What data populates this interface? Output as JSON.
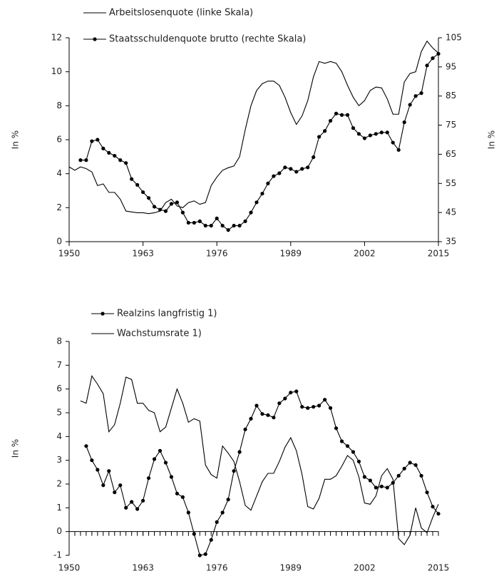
{
  "chart_data": [
    {
      "type": "line",
      "x": [
        1950,
        1951,
        1952,
        1953,
        1954,
        1955,
        1956,
        1957,
        1958,
        1959,
        1960,
        1961,
        1962,
        1963,
        1964,
        1965,
        1966,
        1967,
        1968,
        1969,
        1970,
        1971,
        1972,
        1973,
        1974,
        1975,
        1976,
        1977,
        1978,
        1979,
        1980,
        1981,
        1982,
        1983,
        1984,
        1985,
        1986,
        1987,
        1988,
        1989,
        1990,
        1991,
        1992,
        1993,
        1994,
        1995,
        1996,
        1997,
        1998,
        1999,
        2000,
        2001,
        2002,
        2003,
        2004,
        2005,
        2006,
        2007,
        2008,
        2009,
        2010,
        2011,
        2012,
        2013,
        2014,
        2015
      ],
      "xlim": [
        1950,
        2015
      ],
      "xticks": [
        1950,
        1963,
        1976,
        1989,
        2002,
        2015
      ],
      "ylim": [
        0,
        12
      ],
      "yticks": [
        0,
        2,
        4,
        6,
        8,
        10,
        12
      ],
      "y2lim": [
        35,
        105
      ],
      "y2ticks": [
        35,
        45,
        55,
        65,
        75,
        85,
        95,
        105
      ],
      "ylabel": "In %",
      "y2label": "In %",
      "legend": "upper left",
      "x_minor_ticks": false,
      "series": [
        {
          "name": "Arbeitslosenquote (linke Skala)",
          "color": "#000000",
          "marker": false,
          "values": [
            4.4,
            4.2,
            4.4,
            4.3,
            4.1,
            3.3,
            3.4,
            2.9,
            2.9,
            2.5,
            1.8,
            1.75,
            1.7,
            1.7,
            1.65,
            1.7,
            1.8,
            2.3,
            2.5,
            2.1,
            2.0,
            2.3,
            2.4,
            2.2,
            2.3,
            3.3,
            3.8,
            4.2,
            4.35,
            4.45,
            5.0,
            6.6,
            8.0,
            8.9,
            9.3,
            9.45,
            9.45,
            9.2,
            8.5,
            7.6,
            6.9,
            7.4,
            8.3,
            9.7,
            10.6,
            10.5,
            10.6,
            10.5,
            10.0,
            9.2,
            8.5,
            8.0,
            8.3,
            8.9,
            9.1,
            9.05,
            8.4,
            7.5,
            7.5,
            9.4,
            9.9,
            10.0,
            11.2,
            11.8,
            11.4,
            11.1
          ]
        },
        {
          "name": "Staatsschuldenquote brutto (rechte Skala)",
          "color": "#000000",
          "marker": true,
          "axis": "y2",
          "values": [
            null,
            null,
            63,
            63,
            69.5,
            70,
            67,
            65.5,
            64.5,
            63,
            62,
            56.5,
            54.5,
            52,
            50,
            47,
            46,
            45.5,
            48,
            48.5,
            45,
            41.5,
            41.5,
            42,
            40.5,
            40.5,
            43,
            40.5,
            39,
            40.5,
            40.5,
            42,
            45,
            48.5,
            51.5,
            55,
            57.5,
            58.5,
            60.5,
            60,
            59,
            60,
            60.5,
            64,
            71,
            73,
            76.5,
            79,
            78.5,
            78.5,
            74,
            72,
            70.5,
            71.5,
            72,
            72.5,
            72.5,
            69,
            66.5,
            76,
            82,
            85,
            86,
            95.5,
            98,
            99.5
          ]
        }
      ]
    },
    {
      "type": "line",
      "x": [
        1950,
        1951,
        1952,
        1953,
        1954,
        1955,
        1956,
        1957,
        1958,
        1959,
        1960,
        1961,
        1962,
        1963,
        1964,
        1965,
        1966,
        1967,
        1968,
        1969,
        1970,
        1971,
        1972,
        1973,
        1974,
        1975,
        1976,
        1977,
        1978,
        1979,
        1980,
        1981,
        1982,
        1983,
        1984,
        1985,
        1986,
        1987,
        1988,
        1989,
        1990,
        1991,
        1992,
        1993,
        1994,
        1995,
        1996,
        1997,
        1998,
        1999,
        2000,
        2001,
        2002,
        2003,
        2004,
        2005,
        2006,
        2007,
        2008,
        2009,
        2010,
        2011,
        2012,
        2013,
        2014,
        2015
      ],
      "xlim": [
        1950,
        2015
      ],
      "xticks": [
        1950,
        1963,
        1976,
        1989,
        2002,
        2015
      ],
      "ylim": [
        -1,
        8
      ],
      "yticks": [
        -1,
        0,
        1,
        2,
        3,
        4,
        5,
        6,
        7,
        8
      ],
      "ylabel": "In %",
      "legend": "upper left",
      "x_minor_ticks": true,
      "series": [
        {
          "name": "Realzins langfristig 1)",
          "color": "#000000",
          "marker": true,
          "values": [
            null,
            null,
            null,
            3.6,
            3.0,
            2.6,
            1.95,
            2.55,
            1.65,
            1.95,
            1.0,
            1.25,
            0.95,
            1.3,
            2.25,
            3.05,
            3.4,
            2.9,
            2.3,
            1.6,
            1.45,
            0.8,
            -0.1,
            -1.0,
            -0.95,
            -0.35,
            0.4,
            0.8,
            1.35,
            2.55,
            3.35,
            4.3,
            4.75,
            5.3,
            4.95,
            4.9,
            4.8,
            5.4,
            5.6,
            5.85,
            5.9,
            5.25,
            5.2,
            5.25,
            5.3,
            5.55,
            5.2,
            4.35,
            3.8,
            3.6,
            3.35,
            2.95,
            2.3,
            2.15,
            1.85,
            1.9,
            1.85,
            2.05,
            2.35,
            2.65,
            2.9,
            2.8,
            2.35,
            1.65,
            1.05,
            0.75
          ]
        },
        {
          "name": "Wachstumsrate 1)",
          "color": "#000000",
          "marker": false,
          "values": [
            null,
            null,
            5.5,
            5.4,
            6.55,
            6.2,
            5.8,
            4.2,
            4.5,
            5.4,
            6.5,
            6.4,
            5.4,
            5.4,
            5.1,
            5.0,
            4.2,
            4.4,
            5.2,
            6.0,
            5.4,
            4.6,
            4.75,
            4.65,
            2.8,
            2.4,
            2.25,
            3.6,
            3.3,
            2.95,
            2.1,
            1.1,
            0.9,
            1.5,
            2.1,
            2.45,
            2.45,
            2.95,
            3.55,
            3.95,
            3.4,
            2.4,
            1.05,
            0.95,
            1.4,
            2.2,
            2.2,
            2.35,
            2.75,
            3.2,
            3.0,
            2.3,
            1.2,
            1.15,
            1.5,
            2.35,
            2.65,
            2.2,
            -0.3,
            -0.55,
            -0.15,
            1.0,
            0.15,
            -0.05,
            0.6,
            1.15
          ]
        }
      ]
    }
  ]
}
